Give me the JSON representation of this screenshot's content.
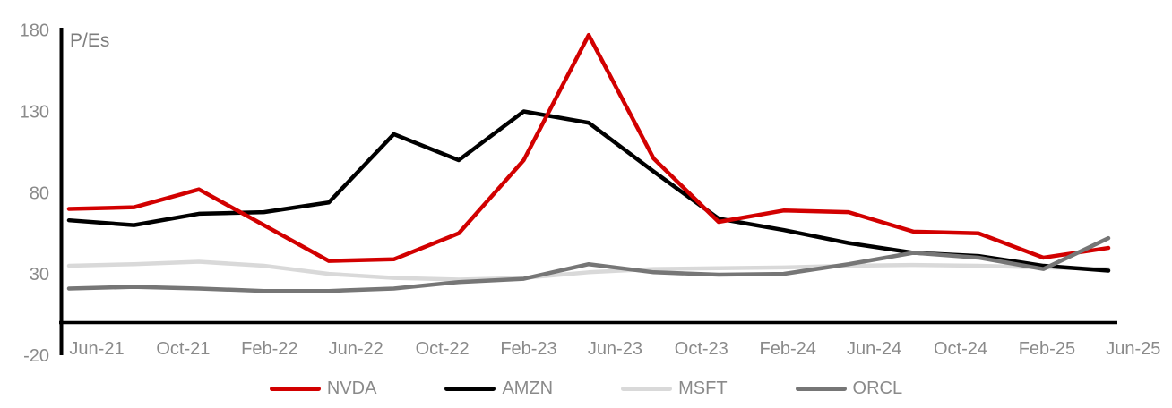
{
  "chart_data": {
    "type": "line",
    "title": "P/Es",
    "x": [
      "May-21",
      "Aug-21",
      "Nov-21",
      "Feb-22",
      "May-22",
      "Aug-22",
      "Nov-22",
      "Feb-23",
      "May-23",
      "Aug-23",
      "Nov-23",
      "Feb-24",
      "May-24",
      "Aug-24",
      "Nov-24",
      "Feb-25",
      "May-25"
    ],
    "x_axis_tick_labels": [
      "Jun-21",
      "Oct-21",
      "Feb-22",
      "Jun-22",
      "Oct-22",
      "Feb-23",
      "Jun-23",
      "Oct-23",
      "Feb-24",
      "Jun-24",
      "Oct-24",
      "Feb-25",
      "Jun-25"
    ],
    "y_ticks": [
      {
        "label": "180",
        "value": 180
      },
      {
        "label": "130",
        "value": 130
      },
      {
        "label": "80",
        "value": 80
      },
      {
        "label": "30",
        "value": 30
      },
      {
        "label": "-20",
        "value": -20
      }
    ],
    "ylim": [
      -20,
      180
    ],
    "grid": false,
    "legend_position": "bottom",
    "axis_color": "#000000",
    "tick_text_color": "#8a8a8a",
    "series": [
      {
        "name": "NVDA",
        "color": "#d20000",
        "values": [
          70,
          71,
          82,
          60,
          38,
          39,
          55,
          100,
          177,
          101,
          62,
          69,
          68,
          56,
          55,
          40,
          46
        ]
      },
      {
        "name": "AMZN",
        "color": "#000000",
        "values": [
          63,
          60,
          67,
          68,
          74,
          116,
          100,
          130,
          123,
          93,
          64,
          57,
          49,
          43,
          41,
          35,
          32
        ]
      },
      {
        "name": "MSFT",
        "color": "#d9d9d9",
        "values": [
          35,
          36,
          37.5,
          35,
          30,
          27.5,
          26.5,
          27.5,
          31,
          33,
          33.5,
          34,
          35,
          35.5,
          35,
          34,
          33
        ]
      },
      {
        "name": "ORCL",
        "color": "#767676",
        "values": [
          21,
          22,
          21,
          19.5,
          19.5,
          21,
          25,
          27,
          36,
          31,
          29.5,
          30,
          36,
          43,
          40,
          33,
          52
        ]
      }
    ]
  }
}
